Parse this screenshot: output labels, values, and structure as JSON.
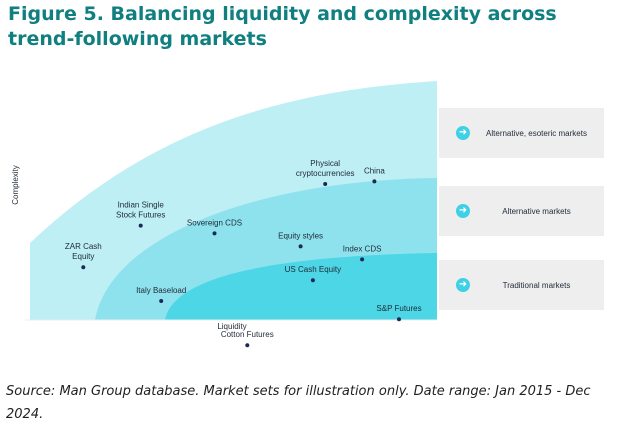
{
  "figure": {
    "title": "Figure 5. Balancing liquidity and complexity across trend-following markets",
    "source": "Source: Man Group database. Market sets for illustration only. Date range: Jan 2015 - Dec 2024."
  },
  "colors": {
    "title": "#0f7f80",
    "zone_alternative_esoteric": "#bdeff4",
    "zone_alternative": "#8ee2ee",
    "zone_traditional": "#4dd6e6",
    "point": "#1b2a55",
    "legend_bg": "#eeeeee",
    "legend_icon": "#3ed0e4"
  },
  "legend": {
    "icon": "arrow-right-icon",
    "items": [
      {
        "label": "Alternative, esoteric markets"
      },
      {
        "label": "Alternative markets"
      },
      {
        "label": "Traditional markets"
      }
    ]
  },
  "chart_data": {
    "type": "scatter",
    "xlabel": "Liquidity",
    "ylabel": "Complexity",
    "xlim": [
      0,
      100
    ],
    "ylim": [
      0,
      100
    ],
    "grid": false,
    "legend_position": "right",
    "ticks": "none",
    "zones": [
      {
        "name": "Alternative, esoteric markets"
      },
      {
        "name": "Alternative markets"
      },
      {
        "name": "Traditional markets"
      }
    ],
    "points": [
      {
        "label": "ZAR Cash\nEquity",
        "x": 13,
        "y": 28
      },
      {
        "label": "Indian Single\nStock Futures",
        "x": 27,
        "y": 44
      },
      {
        "label": "Sovereign CDS",
        "x": 45,
        "y": 41
      },
      {
        "label": "Italy Baseload",
        "x": 32,
        "y": 15
      },
      {
        "label": "Cotton Futures",
        "x": 53,
        "y": -2
      },
      {
        "label": "Physical\ncryptocurrencies",
        "x": 72,
        "y": 60
      },
      {
        "label": "China",
        "x": 84,
        "y": 61
      },
      {
        "label": "Equity styles",
        "x": 66,
        "y": 36
      },
      {
        "label": "Index CDS",
        "x": 81,
        "y": 31
      },
      {
        "label": "US Cash Equity",
        "x": 69,
        "y": 23
      },
      {
        "label": "S&P Futures",
        "x": 90,
        "y": 8
      }
    ]
  }
}
